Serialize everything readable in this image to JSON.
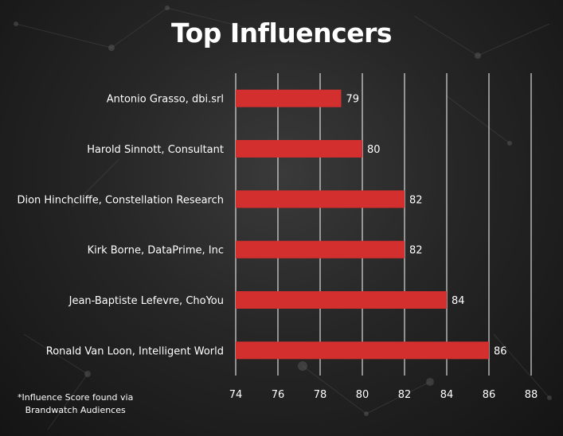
{
  "title": "Top Influencers",
  "footnote": "*Influence Score found via\nBrandwatch Audiences",
  "colors": {
    "bar": "#d32f2f",
    "grid": "#ffffff",
    "text": "#ffffff"
  },
  "chart_data": {
    "type": "bar",
    "orientation": "horizontal",
    "title": "Top Influencers",
    "categories": [
      "Antonio Grasso, dbi.srl",
      "Harold Sinnott, Consultant",
      "Dion Hinchcliffe, Constellation Research",
      "Kirk Borne, DataPrime, Inc",
      "Jean-Baptiste Lefevre, ChoYou",
      "Ronald Van Loon, Intelligent World"
    ],
    "values": [
      79,
      80,
      82,
      82,
      84,
      86
    ],
    "xlim": [
      74,
      88
    ],
    "xticks": [
      74,
      76,
      78,
      80,
      82,
      84,
      86,
      88
    ],
    "grid": "vertical",
    "data_labels": true
  }
}
